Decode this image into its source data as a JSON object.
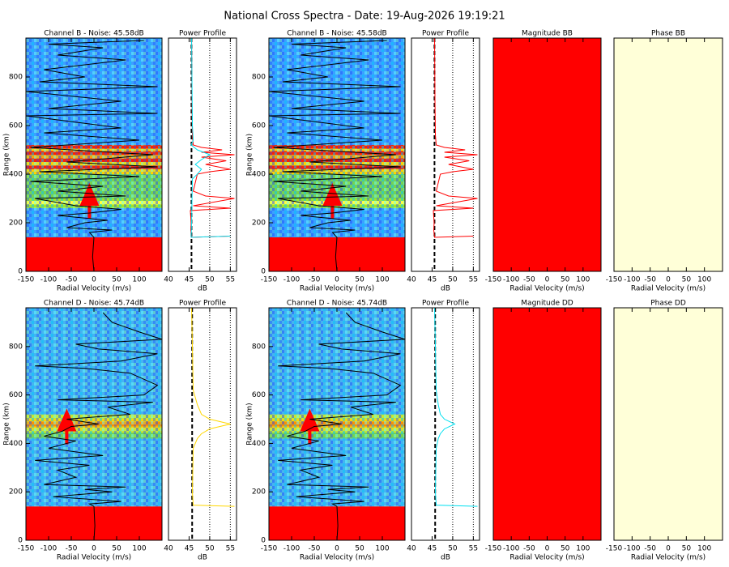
{
  "title": "National Cross Spectra - Date: 19-Aug-2026 19:19:21",
  "chart_data": [
    {
      "type": "heatmap",
      "title": "Channel B - Noise: 45.58dB",
      "xlabel": "Radial Velocity (m/s)",
      "ylabel": "Range (km)",
      "xlim": [
        -150,
        150
      ],
      "ylim": [
        0,
        960
      ],
      "xticks": [
        -150,
        -100,
        -50,
        0,
        50,
        100
      ],
      "yticks": [
        0,
        200,
        400,
        600,
        800
      ],
      "bands": {
        "edges": [
          0,
          140,
          260,
          275,
          290,
          300,
          400,
          420,
          435,
          450,
          465,
          480,
          495,
          505,
          520,
          960
        ],
        "colors": [
          "#ff0000",
          "#3ca0ff",
          "#a0e628",
          "#ffff40",
          "#a0e628",
          "#78d250",
          "#ffd200",
          "#ff2000",
          "#ffd200",
          "#ff2000",
          "#ffa000",
          "#ff2000",
          "#ffd200",
          "#ff2000",
          "#3ca0ff"
        ]
      },
      "peak": {
        "x": -10,
        "y": 290,
        "color": "#ff0000"
      },
      "line": {
        "color": "#000000",
        "x": [
          0,
          -3,
          0,
          -10,
          40,
          -60,
          -20,
          30,
          -80,
          -10,
          60,
          -40,
          -130,
          70,
          -80,
          20,
          -140,
          100,
          -120,
          140,
          -60,
          130,
          -140,
          100,
          -110,
          60,
          -150,
          140,
          -100,
          60,
          -150,
          140,
          -120,
          -20,
          -110,
          70,
          -80,
          20,
          -100,
          110
        ],
        "y": [
          0,
          60,
          140,
          160,
          170,
          180,
          200,
          210,
          230,
          240,
          255,
          270,
          300,
          310,
          330,
          350,
          370,
          390,
          410,
          430,
          450,
          480,
          510,
          540,
          570,
          590,
          640,
          650,
          670,
          700,
          740,
          760,
          780,
          800,
          830,
          870,
          890,
          920,
          935,
          950
        ]
      }
    },
    {
      "type": "line",
      "title": "Power Profile",
      "xlabel": "dB",
      "xlim": [
        40,
        56.5
      ],
      "ylim": [
        0,
        960
      ],
      "xticks": [
        40,
        45,
        50,
        55
      ],
      "xgrid": [
        50,
        55
      ],
      "noise": 45.58,
      "series": [
        {
          "color": "#ff0000",
          "x": [
            55,
            45.6,
            45.4,
            45.5,
            45.3,
            55,
            46,
            56,
            49,
            46,
            47,
            50,
            55,
            49,
            54,
            48,
            56,
            48,
            53,
            48,
            46,
            45.8,
            45.7,
            45.6
          ],
          "y": [
            145,
            140,
            170,
            200,
            250,
            260,
            270,
            300,
            310,
            330,
            400,
            410,
            420,
            440,
            455,
            470,
            480,
            490,
            500,
            510,
            520,
            560,
            700,
            960
          ]
        },
        {
          "color": "#00e0f0",
          "x": [
            55,
            45.5,
            45.6,
            45.8,
            47,
            48,
            46.5,
            48,
            50,
            47,
            45.5,
            46,
            45.8,
            45.6
          ],
          "y": [
            145,
            140,
            200,
            380,
            400,
            420,
            440,
            460,
            480,
            500,
            520,
            540,
            600,
            960
          ]
        }
      ]
    },
    {
      "type": "heatmap",
      "title": "Channel B - Noise: 45.58dB",
      "xlabel": "Radial Velocity (m/s)",
      "ylabel": "Range (km)",
      "xlim": [
        -150,
        150
      ],
      "ylim": [
        0,
        960
      ],
      "xticks": [
        -150,
        -100,
        -50,
        0,
        50,
        100
      ],
      "yticks": [
        0,
        200,
        400,
        600,
        800
      ],
      "bands": {
        "edges": [
          0,
          140,
          260,
          275,
          290,
          300,
          400,
          420,
          435,
          450,
          465,
          480,
          495,
          505,
          520,
          960
        ],
        "colors": [
          "#ff0000",
          "#3ca0ff",
          "#a0e628",
          "#ffff40",
          "#a0e628",
          "#78d250",
          "#ffd200",
          "#ff2000",
          "#ffd200",
          "#ff2000",
          "#ffa000",
          "#ff2000",
          "#ffd200",
          "#ff2000",
          "#3ca0ff"
        ]
      },
      "peak": {
        "x": -10,
        "y": 290,
        "color": "#ff0000"
      },
      "line": {
        "color": "#000000",
        "x": [
          0,
          -3,
          0,
          -10,
          40,
          -60,
          -20,
          30,
          -80,
          -10,
          60,
          -40,
          -130,
          70,
          -80,
          20,
          -140,
          100,
          -120,
          140,
          -60,
          130,
          -140,
          100,
          -110,
          60,
          -150,
          140,
          -100,
          60,
          -150,
          140,
          -120,
          -20,
          -110,
          70,
          -80,
          20,
          -100,
          110
        ],
        "y": [
          0,
          60,
          140,
          160,
          170,
          180,
          200,
          210,
          230,
          240,
          255,
          270,
          300,
          310,
          330,
          350,
          370,
          390,
          410,
          430,
          450,
          480,
          510,
          540,
          570,
          590,
          640,
          650,
          670,
          700,
          740,
          760,
          780,
          800,
          830,
          870,
          890,
          920,
          935,
          950
        ]
      }
    },
    {
      "type": "line",
      "title": "Power Profile",
      "xlabel": "dB",
      "xlim": [
        40,
        56.5
      ],
      "ylim": [
        0,
        960
      ],
      "xticks": [
        40,
        45,
        50,
        55
      ],
      "xgrid": [
        50,
        55
      ],
      "noise": 45.58,
      "series": [
        {
          "color": "#ff0000",
          "x": [
            55,
            45.6,
            45.4,
            45.5,
            45.3,
            55,
            46,
            56,
            49,
            46,
            47,
            50,
            55,
            49,
            54,
            48,
            56,
            48,
            53,
            48,
            46,
            45.8,
            45.7,
            45.6
          ],
          "y": [
            145,
            140,
            170,
            200,
            250,
            260,
            270,
            300,
            310,
            330,
            400,
            410,
            420,
            440,
            455,
            470,
            480,
            490,
            500,
            510,
            520,
            560,
            700,
            960
          ]
        }
      ]
    },
    {
      "type": "fill",
      "title": "Magnitude BB",
      "xlabel": "Radial Velocity (m/s)",
      "xlim": [
        -150,
        150
      ],
      "xticks": [
        -150,
        -100,
        -50,
        0,
        50,
        100
      ],
      "color": "#ff0000"
    },
    {
      "type": "fill",
      "title": "Phase BB",
      "xlabel": "Radial Velocity (m/s)",
      "xlim": [
        -150,
        150
      ],
      "xticks": [
        -150,
        -100,
        -50,
        0,
        50,
        100
      ],
      "color": "#ffffd8"
    },
    {
      "type": "heatmap",
      "title": "Channel D - Noise: 45.74dB",
      "xlabel": "Radial Velocity (m/s)",
      "ylabel": "Range (km)",
      "xlim": [
        -150,
        150
      ],
      "ylim": [
        0,
        960
      ],
      "xticks": [
        -150,
        -100,
        -50,
        0,
        50,
        100
      ],
      "yticks": [
        0,
        200,
        400,
        600,
        800
      ],
      "bands": {
        "edges": [
          0,
          140,
          420,
          445,
          460,
          470,
          490,
          500,
          520,
          960
        ],
        "colors": [
          "#ff0000",
          "#46b4f0",
          "#78d250",
          "#c8e632",
          "#ffd700",
          "#ff9000",
          "#ffd700",
          "#c8e632",
          "#46b4f0"
        ]
      },
      "peak": {
        "x": -60,
        "y": 470,
        "color": "#ff0000"
      },
      "line": {
        "color": "#000000",
        "x": [
          0,
          2,
          0,
          -10,
          60,
          -90,
          40,
          -20,
          70,
          -110,
          -40,
          -80,
          -10,
          -130,
          20,
          -100,
          -40,
          -110,
          -70,
          -50,
          10,
          -60,
          80,
          30,
          130,
          -80,
          110,
          140,
          80,
          -20,
          -130,
          60,
          140,
          10,
          -40,
          150,
          100,
          40,
          20
        ],
        "y": [
          0,
          60,
          140,
          150,
          160,
          180,
          200,
          210,
          220,
          230,
          260,
          290,
          310,
          330,
          350,
          380,
          410,
          430,
          450,
          470,
          480,
          500,
          520,
          550,
          570,
          580,
          600,
          640,
          690,
          710,
          720,
          740,
          770,
          790,
          810,
          830,
          860,
          900,
          940
        ]
      }
    },
    {
      "type": "line",
      "title": "Power Profile",
      "xlabel": "dB",
      "xlim": [
        40,
        56.5
      ],
      "ylim": [
        0,
        960
      ],
      "xticks": [
        40,
        45,
        50,
        55
      ],
      "xgrid": [
        50,
        55
      ],
      "noise": 45.74,
      "series": [
        {
          "color": "#ffd700",
          "x": [
            56,
            46,
            45.8,
            46,
            47,
            48,
            50,
            55,
            50,
            48,
            47,
            46,
            45.8,
            45.6
          ],
          "y": [
            140,
            145,
            200,
            380,
            420,
            440,
            460,
            480,
            500,
            520,
            560,
            620,
            800,
            960
          ]
        }
      ]
    },
    {
      "type": "heatmap",
      "title": "Channel D - Noise: 45.74dB",
      "xlabel": "Radial Velocity (m/s)",
      "ylabel": "Range (km)",
      "xlim": [
        -150,
        150
      ],
      "ylim": [
        0,
        960
      ],
      "xticks": [
        -150,
        -100,
        -50,
        0,
        50,
        100
      ],
      "yticks": [
        0,
        200,
        400,
        600,
        800
      ],
      "bands": {
        "edges": [
          0,
          140,
          420,
          445,
          460,
          470,
          490,
          500,
          520,
          960
        ],
        "colors": [
          "#ff0000",
          "#46b4f0",
          "#78d250",
          "#c8e632",
          "#ffd700",
          "#ff9000",
          "#ffd700",
          "#c8e632",
          "#46b4f0"
        ]
      },
      "peak": {
        "x": -60,
        "y": 470,
        "color": "#ff0000"
      },
      "line": {
        "color": "#000000",
        "x": [
          0,
          2,
          0,
          -10,
          60,
          -90,
          40,
          -20,
          70,
          -110,
          -40,
          -80,
          -10,
          -130,
          20,
          -100,
          -40,
          -110,
          -70,
          -50,
          10,
          -60,
          80,
          30,
          130,
          -80,
          110,
          140,
          80,
          -20,
          -130,
          60,
          140,
          10,
          -40,
          150,
          100,
          40,
          20
        ],
        "y": [
          0,
          60,
          140,
          150,
          160,
          180,
          200,
          210,
          220,
          230,
          260,
          290,
          310,
          330,
          350,
          380,
          410,
          430,
          450,
          470,
          480,
          500,
          520,
          550,
          570,
          580,
          600,
          640,
          690,
          710,
          720,
          740,
          770,
          790,
          810,
          830,
          860,
          900,
          940
        ]
      }
    },
    {
      "type": "line",
      "title": "Power Profile",
      "xlabel": "dB",
      "xlim": [
        40,
        56.5
      ],
      "ylim": [
        0,
        960
      ],
      "xticks": [
        40,
        45,
        50,
        55
      ],
      "xgrid": [
        50,
        55
      ],
      "noise": 45.74,
      "series": [
        {
          "color": "#00e0f0",
          "x": [
            56,
            46,
            45.8,
            46,
            46.5,
            47,
            48,
            50.5,
            48,
            47,
            46.5,
            46,
            45.8,
            45.6
          ],
          "y": [
            140,
            145,
            200,
            380,
            420,
            440,
            460,
            480,
            500,
            520,
            560,
            620,
            800,
            960
          ]
        }
      ]
    },
    {
      "type": "fill",
      "title": "Magnitude DD",
      "xlabel": "Radial Velocity (m/s)",
      "xlim": [
        -150,
        150
      ],
      "xticks": [
        -150,
        -100,
        -50,
        0,
        50,
        100
      ],
      "color": "#ff0000"
    },
    {
      "type": "fill",
      "title": "Phase DD",
      "xlabel": "Radial Velocity (m/s)",
      "xlim": [
        -150,
        150
      ],
      "xticks": [
        -150,
        -100,
        -50,
        0,
        50,
        100
      ],
      "color": "#ffffd8"
    }
  ]
}
